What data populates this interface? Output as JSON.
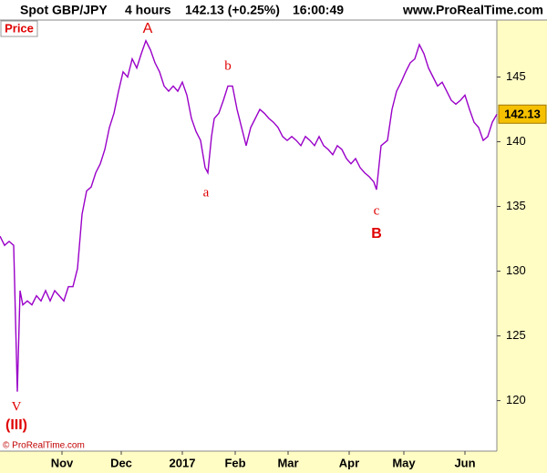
{
  "chart_data": {
    "type": "line",
    "header": {
      "instrument": "Spot GBP/JPY",
      "timeframe": "4 hours",
      "quote": "142.13 (+0.25%)",
      "time": "16:00:49",
      "site": "www.ProRealTime.com"
    },
    "panel_label": "Price",
    "copyright": "© ProRealTime.com",
    "last_price": 142.13,
    "color": "#9a00c8",
    "annotations": [
      "A",
      "b",
      "a",
      "c",
      "B",
      "V",
      "(III)"
    ],
    "x": [
      0,
      5,
      10,
      15,
      19,
      22,
      25,
      30,
      35,
      40,
      45,
      50,
      55,
      60,
      65,
      70,
      75,
      80,
      85,
      90,
      95,
      100,
      105,
      110,
      115,
      120,
      125,
      130,
      135,
      140,
      145,
      150,
      155,
      160,
      165,
      170,
      175,
      180,
      185,
      190,
      195,
      200,
      205,
      210,
      215,
      220,
      225,
      228,
      232,
      235,
      240,
      245,
      250,
      255,
      260,
      265,
      270,
      275,
      280,
      285,
      290,
      295,
      300,
      305,
      310,
      315,
      320,
      325,
      330,
      335,
      340,
      345,
      350,
      355,
      360,
      365,
      370,
      375,
      380,
      385,
      390,
      395,
      400,
      405,
      410,
      413,
      418,
      425,
      430,
      435,
      440,
      445,
      450,
      455,
      460,
      465,
      470,
      475,
      480,
      485,
      490,
      495,
      500,
      505,
      510,
      515,
      520,
      525,
      530,
      535,
      540,
      545
    ],
    "values": [
      132.7,
      132.0,
      132.3,
      132.0,
      120.7,
      128.5,
      127.4,
      127.7,
      127.4,
      128.1,
      127.7,
      128.5,
      127.7,
      128.5,
      128.1,
      127.7,
      128.8,
      128.8,
      130.2,
      134.4,
      136.2,
      136.5,
      137.6,
      138.3,
      139.4,
      141.1,
      142.2,
      143.9,
      145.4,
      145.0,
      146.4,
      145.7,
      146.8,
      147.8,
      147.1,
      146.1,
      145.4,
      144.3,
      143.9,
      144.3,
      143.9,
      144.6,
      143.6,
      141.8,
      140.8,
      140.1,
      138.0,
      137.6,
      140.4,
      141.8,
      142.2,
      143.2,
      144.3,
      144.3,
      142.5,
      141.1,
      139.7,
      141.1,
      141.8,
      142.5,
      142.2,
      141.8,
      141.5,
      141.1,
      140.4,
      140.1,
      140.4,
      140.1,
      139.7,
      140.4,
      140.1,
      139.7,
      140.4,
      139.7,
      139.4,
      139.0,
      139.7,
      139.4,
      138.7,
      138.3,
      138.7,
      138.0,
      137.6,
      137.3,
      136.9,
      136.3,
      139.7,
      140.1,
      142.5,
      143.9,
      144.6,
      145.4,
      146.1,
      146.4,
      147.5,
      146.8,
      145.7,
      145.0,
      144.3,
      144.6,
      143.9,
      143.2,
      142.9,
      143.2,
      143.6,
      142.5,
      141.5,
      141.1,
      140.1,
      140.4,
      141.5,
      142.13
    ],
    "xlim": [
      0,
      545
    ],
    "xticks": [
      {
        "value": 68,
        "label": "Nov"
      },
      {
        "value": 133,
        "label": "Dec"
      },
      {
        "value": 200,
        "label": "2017"
      },
      {
        "value": 258,
        "label": "Feb"
      },
      {
        "value": 316,
        "label": "Mar"
      },
      {
        "value": 383,
        "label": "Apr"
      },
      {
        "value": 443,
        "label": "May"
      },
      {
        "value": 510,
        "label": "Jun"
      }
    ],
    "ylim": [
      116.1,
      149.4
    ],
    "yticks": [
      120,
      125,
      130,
      135,
      140,
      145
    ]
  }
}
